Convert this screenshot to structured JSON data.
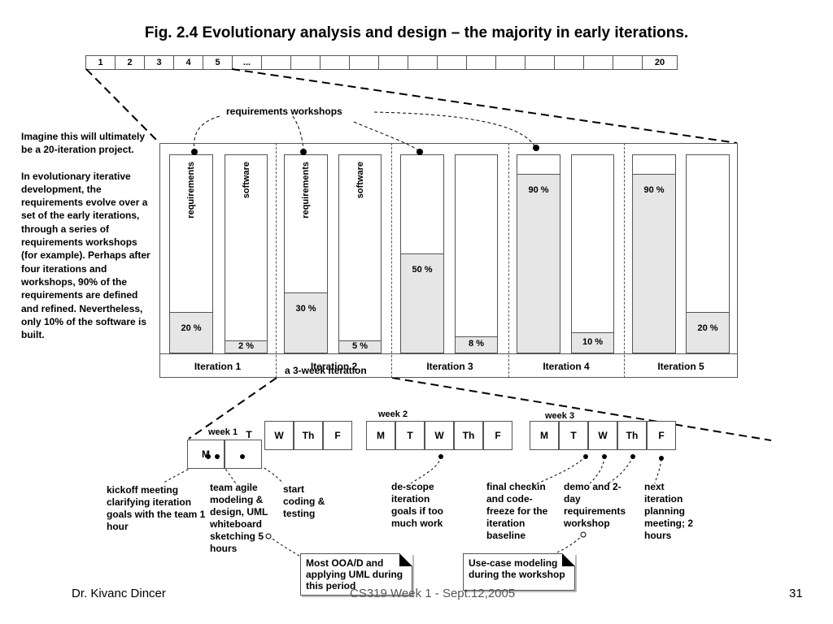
{
  "title": "Fig. 2.4 Evolutionary analysis and design – the majority in early iterations.",
  "iteration_strip": [
    "1",
    "2",
    "3",
    "4",
    "5",
    "...",
    "",
    "",
    "",
    "",
    "",
    "",
    "",
    "",
    "",
    "",
    "",
    "",
    "",
    "20"
  ],
  "side_text": {
    "para1": "Imagine this will ultimately be a 20-iteration project.",
    "para2": "In evolutionary iterative development, the requirements evolve over a set of the early iterations, through a series of requirements workshops (for example). Perhaps after four iterations and workshops, 90% of the requirements are defined and refined. Nevertheless, only 10% of the software is built."
  },
  "requirements_workshops_label": "requirements workshops",
  "column_labels": {
    "requirements": "requirements",
    "software": "software"
  },
  "iterations": [
    {
      "label": "Iteration 1",
      "requirements_pct": 20,
      "requirements_text": "20 %",
      "software_pct": 2,
      "software_text": "2 %"
    },
    {
      "label": "Iteration 2",
      "requirements_pct": 30,
      "requirements_text": "30 %",
      "software_pct": 5,
      "software_text": "5 %"
    },
    {
      "label": "Iteration 3",
      "requirements_pct": 50,
      "requirements_text": "50 %",
      "software_pct": 8,
      "software_text": "8 %"
    },
    {
      "label": "Iteration 4",
      "requirements_pct": 90,
      "requirements_text": "90 %",
      "software_pct": 10,
      "software_text": "10 %"
    },
    {
      "label": "Iteration 5",
      "requirements_pct": 90,
      "requirements_text": "90 %",
      "software_pct": 20,
      "software_text": "20 %"
    }
  ],
  "three_week_label": "a 3-week iteration",
  "weeks": [
    {
      "label": "week 1",
      "days": [
        "M",
        "T",
        "W",
        "Th",
        "F"
      ]
    },
    {
      "label": "week 2",
      "days": [
        "M",
        "T",
        "W",
        "Th",
        "F"
      ]
    },
    {
      "label": "week 3",
      "days": [
        "M",
        "T",
        "W",
        "Th",
        "F"
      ]
    }
  ],
  "annotations": {
    "kickoff": "kickoff meeting clarifying iteration goals with the team 1 hour",
    "agile": "team agile modeling & design, UML whiteboard sketching 5 hours",
    "start_coding": "start coding & testing",
    "descope": "de-scope iteration goals if too much work",
    "final_checkin": "final checkin and code-freeze for the iteration baseline",
    "demo": "demo and 2-day requirements workshop",
    "next_planning": "next iteration planning meeting; 2 hours"
  },
  "notes": {
    "ooad": "Most OOA/D and applying UML during this period",
    "usecase": "Use-case modeling during the workshop"
  },
  "footer": {
    "author": "Dr. Kivanc Dincer",
    "course": "CS319 Week 1 - Sept.12,2005",
    "page": "31"
  }
}
